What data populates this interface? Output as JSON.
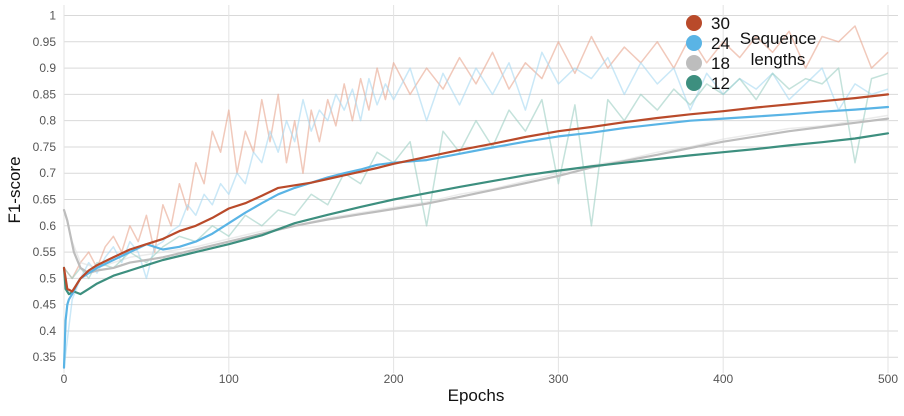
{
  "chart_data": {
    "type": "line",
    "xlabel": "Epochs",
    "ylabel": "F1-score",
    "xlim": [
      0,
      500
    ],
    "ylim": [
      0.32,
      1.02
    ],
    "xticks": [
      0,
      100,
      200,
      300,
      400,
      500
    ],
    "yticks": [
      0.35,
      0.4,
      0.45,
      0.5,
      0.55,
      0.6,
      0.65,
      0.7,
      0.75,
      0.8,
      0.85,
      0.9,
      0.95,
      1
    ],
    "ytick_labels": [
      "0.35",
      "0.4",
      "0.45",
      "0.5",
      "0.55",
      "0.6",
      "0.65",
      "0.7",
      "0.75",
      "0.8",
      "0.85",
      "0.9",
      "0.95",
      "1"
    ],
    "grid": true,
    "legend_position": "top-right",
    "legend_title": [
      "Sequence",
      "lengths"
    ],
    "raw_series_opacity": 0.25,
    "series": [
      {
        "name": "30",
        "color": "#b94a2a",
        "raw_color": "#e8a58e",
        "smoothed": {
          "x": [
            0,
            2,
            5,
            8,
            10,
            15,
            20,
            30,
            40,
            50,
            60,
            70,
            80,
            90,
            100,
            110,
            120,
            130,
            140,
            150,
            160,
            170,
            180,
            190,
            200,
            220,
            240,
            260,
            280,
            300,
            320,
            340,
            360,
            380,
            400,
            420,
            440,
            460,
            480,
            500
          ],
          "y": [
            0.52,
            0.48,
            0.475,
            0.49,
            0.5,
            0.515,
            0.525,
            0.54,
            0.555,
            0.565,
            0.575,
            0.59,
            0.6,
            0.615,
            0.633,
            0.643,
            0.657,
            0.672,
            0.677,
            0.682,
            0.689,
            0.696,
            0.703,
            0.71,
            0.718,
            0.731,
            0.744,
            0.756,
            0.769,
            0.78,
            0.788,
            0.797,
            0.805,
            0.812,
            0.818,
            0.825,
            0.831,
            0.837,
            0.843,
            0.85
          ]
        },
        "raw": {
          "x": [
            0,
            5,
            10,
            15,
            20,
            25,
            30,
            35,
            40,
            45,
            50,
            55,
            60,
            65,
            70,
            75,
            80,
            85,
            90,
            95,
            100,
            105,
            110,
            115,
            120,
            125,
            130,
            135,
            140,
            145,
            150,
            155,
            160,
            165,
            170,
            175,
            180,
            185,
            190,
            195,
            200,
            210,
            220,
            230,
            240,
            250,
            260,
            270,
            280,
            290,
            300,
            310,
            320,
            330,
            340,
            350,
            360,
            370,
            380,
            390,
            400,
            410,
            420,
            430,
            440,
            450,
            460,
            470,
            480,
            490,
            500
          ],
          "y": [
            0.52,
            0.5,
            0.53,
            0.55,
            0.52,
            0.56,
            0.58,
            0.55,
            0.6,
            0.57,
            0.62,
            0.55,
            0.64,
            0.6,
            0.68,
            0.63,
            0.72,
            0.68,
            0.78,
            0.74,
            0.82,
            0.7,
            0.78,
            0.74,
            0.84,
            0.76,
            0.85,
            0.72,
            0.8,
            0.7,
            0.82,
            0.76,
            0.84,
            0.79,
            0.87,
            0.8,
            0.88,
            0.82,
            0.9,
            0.84,
            0.91,
            0.85,
            0.9,
            0.86,
            0.92,
            0.87,
            0.93,
            0.86,
            0.91,
            0.88,
            0.95,
            0.89,
            0.96,
            0.9,
            0.94,
            0.91,
            0.95,
            0.9,
            0.96,
            0.91,
            0.95,
            0.92,
            0.96,
            0.93,
            0.97,
            0.9,
            0.96,
            0.95,
            0.98,
            0.9,
            0.93
          ]
        }
      },
      {
        "name": "24",
        "color": "#5ab4e5",
        "raw_color": "#a6d8f2",
        "smoothed": {
          "x": [
            0,
            1,
            2,
            3,
            5,
            8,
            10,
            15,
            20,
            30,
            40,
            50,
            60,
            70,
            80,
            90,
            100,
            110,
            120,
            130,
            140,
            150,
            160,
            170,
            180,
            190,
            200,
            220,
            240,
            260,
            280,
            300,
            320,
            340,
            360,
            380,
            400,
            420,
            440,
            460,
            480,
            500
          ],
          "y": [
            0.33,
            0.42,
            0.45,
            0.46,
            0.47,
            0.49,
            0.5,
            0.51,
            0.52,
            0.535,
            0.55,
            0.565,
            0.555,
            0.56,
            0.57,
            0.585,
            0.605,
            0.625,
            0.643,
            0.66,
            0.672,
            0.682,
            0.692,
            0.7,
            0.707,
            0.716,
            0.72,
            0.725,
            0.737,
            0.749,
            0.76,
            0.77,
            0.777,
            0.786,
            0.793,
            0.8,
            0.804,
            0.808,
            0.812,
            0.817,
            0.821,
            0.826
          ]
        },
        "raw": {
          "x": [
            0,
            5,
            10,
            15,
            20,
            25,
            30,
            35,
            40,
            45,
            50,
            55,
            60,
            65,
            70,
            75,
            80,
            85,
            90,
            95,
            100,
            105,
            110,
            115,
            120,
            125,
            130,
            135,
            140,
            145,
            150,
            155,
            160,
            165,
            170,
            175,
            180,
            185,
            190,
            195,
            200,
            210,
            220,
            230,
            240,
            250,
            260,
            270,
            280,
            290,
            300,
            310,
            320,
            330,
            340,
            350,
            360,
            370,
            380,
            390,
            400,
            410,
            420,
            430,
            440,
            450,
            460,
            470,
            480,
            490,
            500
          ],
          "y": [
            0.33,
            0.46,
            0.5,
            0.53,
            0.51,
            0.54,
            0.56,
            0.53,
            0.57,
            0.55,
            0.5,
            0.56,
            0.57,
            0.59,
            0.6,
            0.64,
            0.62,
            0.66,
            0.64,
            0.68,
            0.66,
            0.7,
            0.68,
            0.74,
            0.72,
            0.78,
            0.74,
            0.8,
            0.76,
            0.84,
            0.78,
            0.82,
            0.8,
            0.85,
            0.82,
            0.86,
            0.8,
            0.88,
            0.83,
            0.87,
            0.84,
            0.9,
            0.8,
            0.89,
            0.83,
            0.9,
            0.85,
            0.91,
            0.82,
            0.93,
            0.87,
            0.9,
            0.88,
            0.92,
            0.85,
            0.91,
            0.87,
            0.9,
            0.82,
            0.89,
            0.85,
            0.88,
            0.86,
            0.89,
            0.84,
            0.87,
            0.9,
            0.82,
            0.87,
            0.85,
            0.86
          ]
        }
      },
      {
        "name": "18",
        "color": "#bdbdbd",
        "raw_color": "#dddddd",
        "smoothed": {
          "x": [
            0,
            2,
            4,
            6,
            10,
            15,
            20,
            30,
            40,
            50,
            60,
            80,
            100,
            120,
            140,
            160,
            180,
            200,
            220,
            240,
            260,
            280,
            300,
            320,
            340,
            360,
            380,
            400,
            420,
            440,
            460,
            480,
            500
          ],
          "y": [
            0.63,
            0.61,
            0.58,
            0.55,
            0.52,
            0.51,
            0.515,
            0.52,
            0.53,
            0.535,
            0.54,
            0.555,
            0.57,
            0.585,
            0.6,
            0.612,
            0.622,
            0.632,
            0.642,
            0.655,
            0.668,
            0.681,
            0.695,
            0.711,
            0.723,
            0.735,
            0.748,
            0.76,
            0.77,
            0.78,
            0.788,
            0.796,
            0.804
          ]
        },
        "raw": {
          "x": [
            0,
            5,
            10,
            20,
            30,
            40,
            50,
            60,
            80,
            100,
            120,
            140,
            160,
            180,
            200,
            220,
            240,
            260,
            280,
            300,
            320,
            340,
            360,
            380,
            400,
            420,
            440,
            460,
            480,
            500
          ],
          "y": [
            0.63,
            0.57,
            0.53,
            0.52,
            0.53,
            0.54,
            0.545,
            0.55,
            0.56,
            0.575,
            0.59,
            0.6,
            0.615,
            0.625,
            0.635,
            0.645,
            0.66,
            0.67,
            0.685,
            0.7,
            0.715,
            0.725,
            0.74,
            0.75,
            0.765,
            0.775,
            0.785,
            0.79,
            0.8,
            0.81
          ]
        }
      },
      {
        "name": "12",
        "color": "#3d8f7f",
        "raw_color": "#9ccfc3",
        "smoothed": {
          "x": [
            0,
            1,
            3,
            6,
            10,
            15,
            20,
            30,
            40,
            50,
            60,
            80,
            100,
            120,
            140,
            160,
            180,
            200,
            220,
            240,
            260,
            280,
            300,
            320,
            340,
            360,
            380,
            400,
            420,
            440,
            460,
            480,
            500
          ],
          "y": [
            0.52,
            0.48,
            0.47,
            0.475,
            0.47,
            0.48,
            0.49,
            0.505,
            0.515,
            0.525,
            0.535,
            0.55,
            0.565,
            0.582,
            0.605,
            0.621,
            0.636,
            0.65,
            0.662,
            0.674,
            0.685,
            0.696,
            0.705,
            0.713,
            0.72,
            0.727,
            0.734,
            0.74,
            0.746,
            0.753,
            0.759,
            0.766,
            0.776
          ]
        },
        "raw": {
          "x": [
            0,
            5,
            10,
            15,
            20,
            30,
            40,
            50,
            60,
            70,
            80,
            90,
            100,
            110,
            120,
            130,
            140,
            150,
            160,
            170,
            180,
            190,
            200,
            210,
            220,
            230,
            240,
            250,
            260,
            270,
            280,
            290,
            300,
            310,
            320,
            330,
            340,
            350,
            360,
            370,
            380,
            390,
            400,
            410,
            420,
            430,
            440,
            450,
            460,
            470,
            480,
            490,
            500
          ],
          "y": [
            0.52,
            0.5,
            0.52,
            0.5,
            0.53,
            0.52,
            0.55,
            0.53,
            0.56,
            0.58,
            0.57,
            0.6,
            0.58,
            0.62,
            0.6,
            0.63,
            0.62,
            0.66,
            0.64,
            0.7,
            0.68,
            0.74,
            0.72,
            0.76,
            0.6,
            0.78,
            0.74,
            0.8,
            0.75,
            0.82,
            0.78,
            0.84,
            0.68,
            0.83,
            0.6,
            0.84,
            0.8,
            0.85,
            0.82,
            0.86,
            0.83,
            0.87,
            0.85,
            0.88,
            0.84,
            0.89,
            0.86,
            0.88,
            0.87,
            0.9,
            0.72,
            0.88,
            0.89
          ]
        }
      }
    ]
  }
}
